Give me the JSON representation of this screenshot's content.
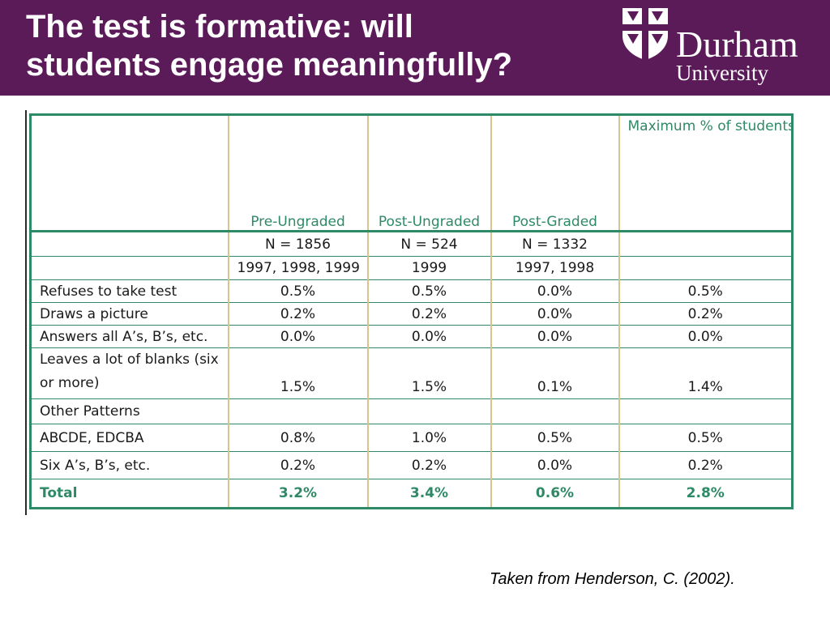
{
  "slide": {
    "title_lines": [
      "The test is formative: will",
      "students engage meaningfully?"
    ],
    "logo": {
      "name": "Durham",
      "subname": "University"
    },
    "citation": "Taken from Henderson, C. (2002).",
    "colors": {
      "header_bg": "#5b1a58",
      "table_accent": "#2e8a66",
      "column_rule": "#d7c48f"
    }
  },
  "table": {
    "headers": [
      "",
      "Pre-Ungraded",
      "Post-Ungraded",
      "Post-Graded",
      "Maximum % of students not taking test seri-ously as a result of grading option"
    ],
    "n_row": [
      "",
      "N = 1856",
      "N = 524",
      "N = 1332",
      ""
    ],
    "years_row": [
      "",
      "1997, 1998, 1999",
      "1999",
      "1997, 1998",
      ""
    ],
    "rows": [
      {
        "label": "Refuses to take test",
        "values": [
          "0.5%",
          "0.5%",
          "0.0%",
          "0.5%"
        ]
      },
      {
        "label": "Draws a picture",
        "values": [
          "0.2%",
          "0.2%",
          "0.0%",
          "0.2%"
        ]
      },
      {
        "label": "Answers all A’s, B’s, etc.",
        "values": [
          "0.0%",
          "0.0%",
          "0.0%",
          "0.0%"
        ]
      },
      {
        "label": "Leaves a lot of blanks (six or more)",
        "values": [
          "1.5%",
          "1.5%",
          "0.1%",
          "1.4%"
        ]
      }
    ],
    "other_patterns_label": "Other Patterns",
    "sub_rows": [
      {
        "label": "ABCDE, EDCBA",
        "values": [
          "0.8%",
          "1.0%",
          "0.5%",
          "0.5%"
        ]
      },
      {
        "label": "Six A’s, B’s, etc.",
        "values": [
          "0.2%",
          "0.2%",
          "0.0%",
          "0.2%"
        ]
      }
    ],
    "total": {
      "label": "Total",
      "values": [
        "3.2%",
        "3.4%",
        "0.6%",
        "2.8%"
      ]
    }
  }
}
